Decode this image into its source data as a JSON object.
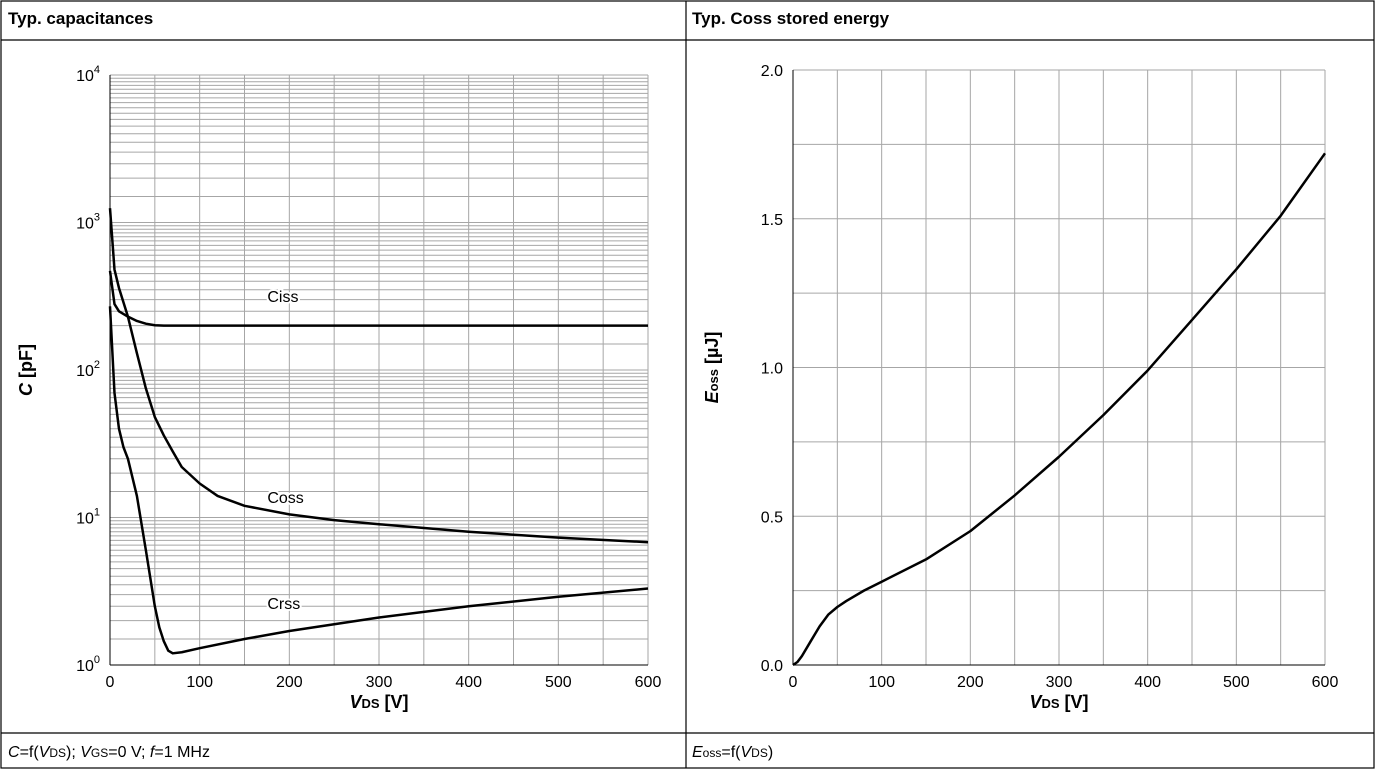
{
  "panels": {
    "left": {
      "title": "Typ. capacitances",
      "condition": {
        "parts": [
          {
            "t": "C",
            "i": true
          },
          {
            "t": "=f("
          },
          {
            "t": "V",
            "i": true
          },
          {
            "t": "DS",
            "sub": true
          },
          {
            "t": ");  "
          },
          {
            "t": "V",
            "i": true
          },
          {
            "t": "GS",
            "sub": true
          },
          {
            "t": "=0 V;  "
          },
          {
            "t": "f",
            "i": true
          },
          {
            "t": "=1 MHz"
          }
        ]
      }
    },
    "right": {
      "title": "Typ. Coss stored energy",
      "condition": {
        "parts": [
          {
            "t": "E",
            "i": true
          },
          {
            "t": "oss",
            "sub": true
          },
          {
            "t": "=f("
          },
          {
            "t": "V",
            "i": true
          },
          {
            "t": "DS",
            "sub": true
          },
          {
            "t": ")"
          }
        ]
      }
    }
  },
  "chart_data": [
    {
      "type": "line",
      "title": "Typ. capacitances",
      "xlabel": {
        "main": "V",
        "sub": "DS",
        "unit": " [V]"
      },
      "ylabel": {
        "main": "C",
        "unit": " [pF]"
      },
      "xlim": [
        0,
        600
      ],
      "ylim": [
        1,
        10000
      ],
      "yscale": "log",
      "grid": true,
      "x_ticks": [
        0,
        100,
        200,
        300,
        400,
        500,
        600
      ],
      "y_ticks": [
        {
          "base": "10",
          "exp": "0"
        },
        {
          "base": "10",
          "exp": "1"
        },
        {
          "base": "10",
          "exp": "2"
        },
        {
          "base": "10",
          "exp": "3"
        },
        {
          "base": "10",
          "exp": "4"
        }
      ],
      "series": [
        {
          "name": "Ciss",
          "label_at": [
            200,
            290
          ],
          "x": [
            0,
            5,
            10,
            20,
            30,
            40,
            50,
            60,
            70,
            100,
            200,
            300,
            400,
            500,
            600
          ],
          "y": [
            470,
            280,
            250,
            230,
            215,
            206,
            201,
            200,
            200,
            200,
            200,
            200,
            200,
            200,
            200
          ]
        },
        {
          "name": "Coss",
          "label_at": [
            200,
            12.5
          ],
          "x": [
            0,
            5,
            10,
            20,
            30,
            40,
            50,
            60,
            70,
            80,
            100,
            120,
            150,
            200,
            250,
            300,
            400,
            500,
            600
          ],
          "y": [
            1250,
            480,
            360,
            230,
            130,
            75,
            48,
            36,
            28,
            22,
            17,
            14,
            12,
            10.5,
            9.6,
            9,
            8,
            7.3,
            6.8
          ]
        },
        {
          "name": "Crss",
          "label_at": [
            200,
            2.4
          ],
          "x": [
            0,
            5,
            10,
            15,
            20,
            30,
            40,
            50,
            55,
            60,
            65,
            70,
            80,
            100,
            150,
            200,
            300,
            400,
            500,
            600
          ],
          "y": [
            270,
            70,
            40,
            30,
            25,
            14,
            6,
            2.5,
            1.8,
            1.45,
            1.25,
            1.2,
            1.22,
            1.3,
            1.5,
            1.7,
            2.1,
            2.5,
            2.9,
            3.3
          ]
        }
      ]
    },
    {
      "type": "line",
      "title": "Typ. Coss stored energy",
      "xlabel": {
        "main": "V",
        "sub": "DS",
        "unit": " [V]"
      },
      "ylabel": {
        "main": "E",
        "sub": "oss",
        "unit": " [µJ]"
      },
      "xlim": [
        0,
        600
      ],
      "ylim": [
        0,
        2
      ],
      "grid": true,
      "x_ticks": [
        0,
        100,
        200,
        300,
        400,
        500,
        600
      ],
      "y_ticks": [
        "0.0",
        "0.5",
        "1.0",
        "1.5",
        "2.0"
      ],
      "series": [
        {
          "x": [
            0,
            5,
            10,
            20,
            30,
            40,
            50,
            60,
            80,
            100,
            150,
            200,
            250,
            300,
            350,
            400,
            450,
            500,
            550,
            600
          ],
          "y": [
            0,
            0.01,
            0.03,
            0.08,
            0.13,
            0.17,
            0.195,
            0.215,
            0.25,
            0.28,
            0.355,
            0.45,
            0.57,
            0.7,
            0.84,
            0.99,
            1.16,
            1.33,
            1.51,
            1.72
          ]
        }
      ]
    }
  ]
}
